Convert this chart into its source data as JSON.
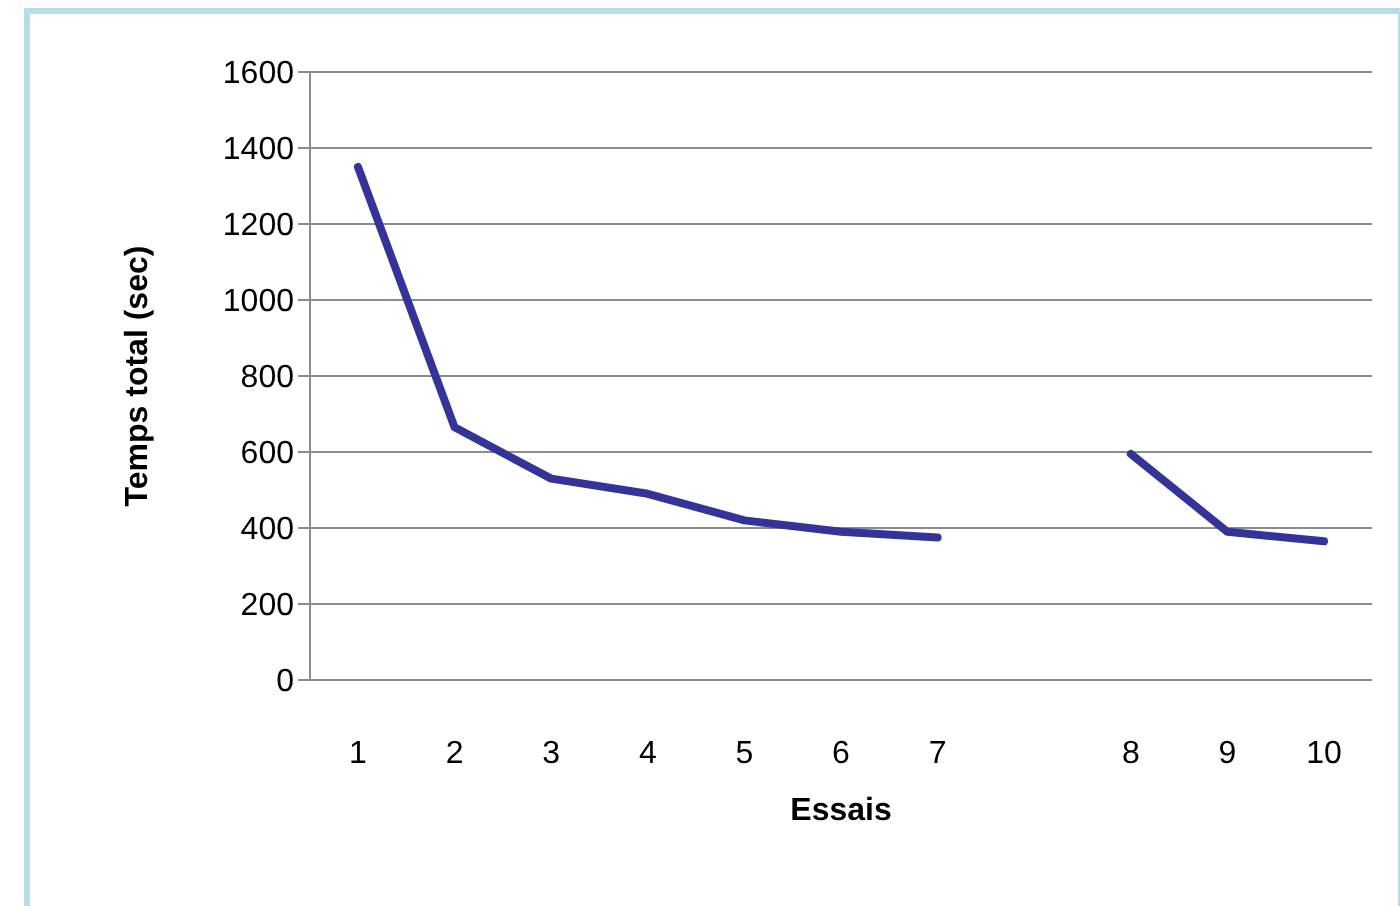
{
  "chart_data": {
    "type": "line",
    "xlabel": "Essais",
    "ylabel": "Temps total (sec)",
    "categories": [
      "1",
      "2",
      "3",
      "4",
      "5",
      "6",
      "7",
      null,
      "8",
      "9",
      "10"
    ],
    "series": [
      {
        "color": "#333399",
        "values": [
          1350,
          665,
          530,
          490,
          420,
          390,
          375,
          null,
          595,
          390,
          365
        ]
      }
    ],
    "ylim": [
      0,
      1600
    ],
    "yticks": [
      0,
      200,
      400,
      600,
      800,
      1000,
      1200,
      1400,
      1600
    ],
    "grid": "y",
    "marker": "none",
    "line_style": "solid"
  }
}
